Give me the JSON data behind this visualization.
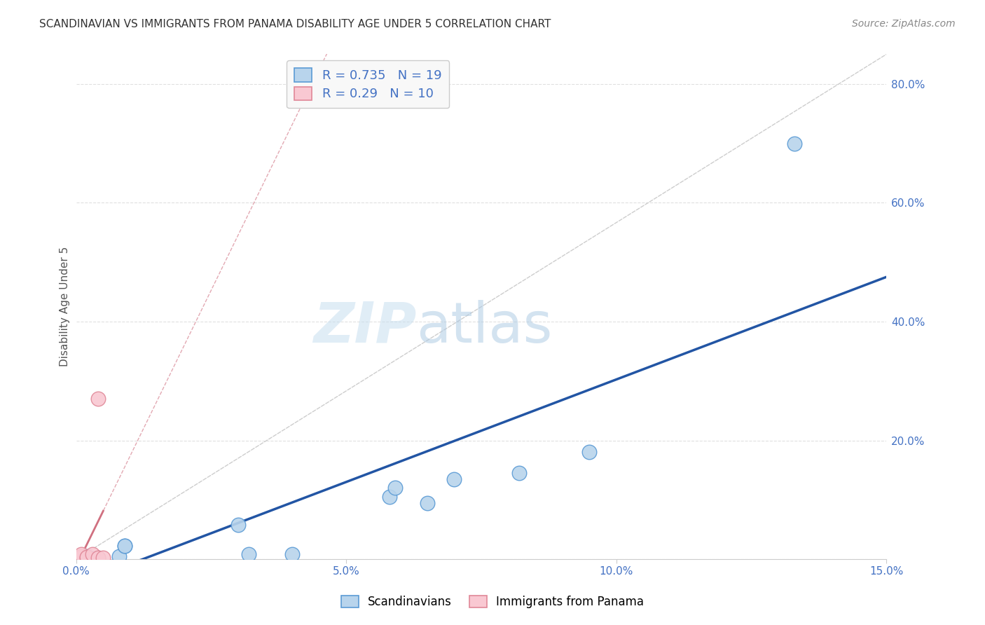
{
  "title": "SCANDINAVIAN VS IMMIGRANTS FROM PANAMA DISABILITY AGE UNDER 5 CORRELATION CHART",
  "source": "Source: ZipAtlas.com",
  "ylabel": "Disability Age Under 5",
  "xlim": [
    0.0,
    0.15
  ],
  "ylim": [
    0.0,
    0.85
  ],
  "xticks": [
    0.0,
    0.05,
    0.1,
    0.15
  ],
  "xticklabels": [
    "0.0%",
    "5.0%",
    "10.0%",
    "15.0%"
  ],
  "yticks_right": [
    0.0,
    0.2,
    0.4,
    0.6,
    0.8
  ],
  "ytick_right_labels": [
    "",
    "20.0%",
    "40.0%",
    "60.0%",
    "80.0%"
  ],
  "scandinavian_x": [
    0.001,
    0.001,
    0.002,
    0.002,
    0.003,
    0.004,
    0.008,
    0.009,
    0.009,
    0.03,
    0.032,
    0.04,
    0.058,
    0.059,
    0.065,
    0.07,
    0.082,
    0.095,
    0.133
  ],
  "scandinavian_y": [
    0.002,
    0.003,
    0.002,
    0.005,
    0.001,
    0.002,
    0.005,
    0.022,
    0.022,
    0.058,
    0.008,
    0.008,
    0.105,
    0.12,
    0.095,
    0.135,
    0.145,
    0.18,
    0.7
  ],
  "panama_x": [
    0.0,
    0.001,
    0.001,
    0.001,
    0.002,
    0.002,
    0.003,
    0.004,
    0.004,
    0.005
  ],
  "panama_y": [
    0.003,
    0.003,
    0.005,
    0.008,
    0.003,
    0.004,
    0.008,
    0.27,
    0.003,
    0.003
  ],
  "scandinavian_R": 0.735,
  "scandinavian_N": 19,
  "panama_R": 0.29,
  "panama_N": 10,
  "blue_scatter_color": "#b8d4ec",
  "blue_edge_color": "#5b9bd5",
  "blue_line_color": "#2255a4",
  "pink_scatter_color": "#f9c8d2",
  "pink_edge_color": "#e08898",
  "pink_line_color": "#d07080",
  "ref_line_color": "#c8c8c8",
  "watermark_color": "#daeaf5",
  "legend_box_color": "#f8f8f8",
  "grid_color": "#e0e0e0",
  "title_color": "#333333",
  "axis_label_color": "#555555",
  "tick_color": "#4472c4",
  "right_tick_color": "#4472c4",
  "source_color": "#888888"
}
